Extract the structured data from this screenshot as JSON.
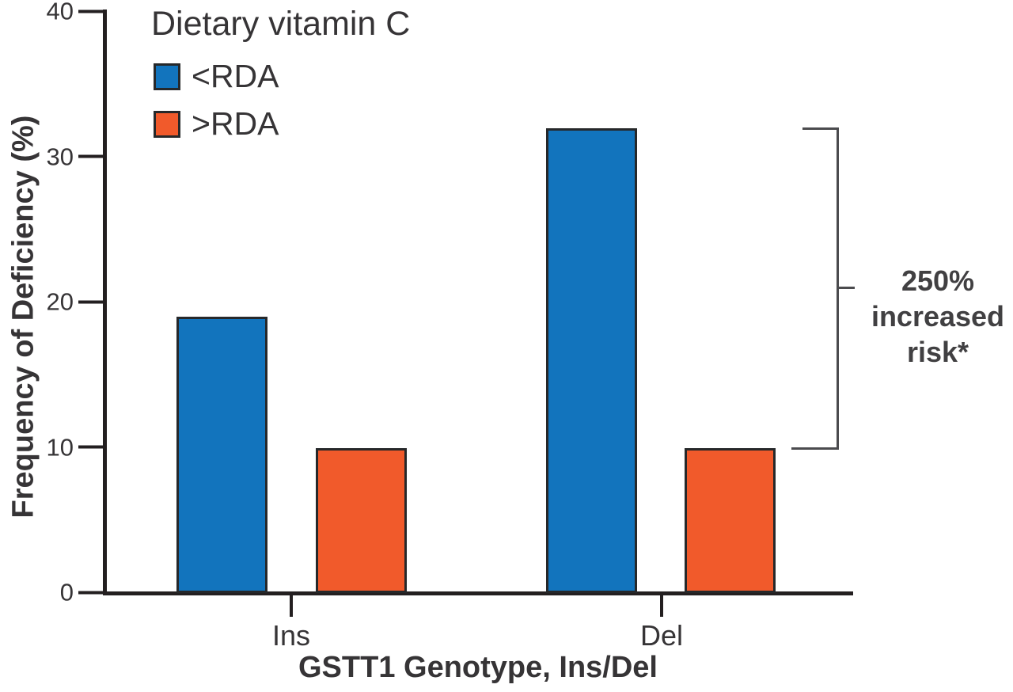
{
  "chart_data": {
    "type": "bar",
    "title": "",
    "categories": [
      "Ins",
      "Del"
    ],
    "series": [
      {
        "name": "<RDA",
        "color": "#1274bd",
        "values": [
          19,
          32
        ]
      },
      {
        "name": ">RDA",
        "color": "#f15a2b",
        "values": [
          10,
          10
        ]
      }
    ],
    "xlabel": "GSTT1 Genotype, Ins/Del",
    "ylabel": "Frequency of Deficiency (%)",
    "ylim": [
      0,
      40
    ],
    "yticks": [
      "0",
      "10",
      "20",
      "30",
      "40"
    ],
    "grid": false,
    "legend": {
      "title": "Dietary vitamin C",
      "position": "top-left",
      "entries": [
        "<RDA",
        ">RDA"
      ]
    },
    "annotation": {
      "text": "250% increased risk*",
      "lines": [
        "250%",
        "increased",
        "risk*"
      ],
      "bracket_top_value": 32,
      "bracket_bottom_value": 10
    },
    "colors": {
      "axis": "#231f20",
      "text": "#363436",
      "bracket": "#4b4b4e",
      "bar_border": "#26282a",
      "series_blue": "#1274bd",
      "series_orange": "#f15a2b"
    }
  }
}
